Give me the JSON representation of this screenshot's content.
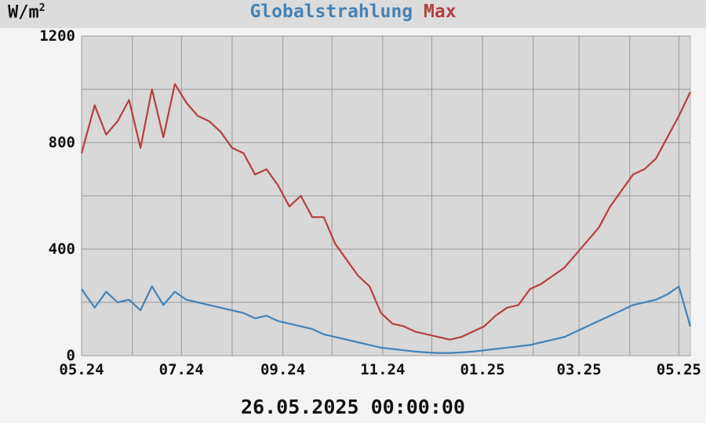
{
  "header": {
    "unit_label": "W/m",
    "unit_exponent": "2",
    "title_part1": "Globalstrahlung",
    "title_part2": "Max"
  },
  "footer": {
    "timestamp": "26.05.2025 00:00:00"
  },
  "colors": {
    "global": "#4682b4",
    "max": "#b44040",
    "plot_bg": "#d8d8d8",
    "grid": "#9a9a9a"
  },
  "chart_data": {
    "type": "line",
    "ylim": [
      0,
      1200
    ],
    "xlim": [
      "2024-05-24",
      "2025-05-31"
    ],
    "grid": true,
    "y_ticks": [
      "0",
      "400",
      "800",
      "1200"
    ],
    "x_ticks": [
      "05.24",
      "07.24",
      "09.24",
      "11.24",
      "01.25",
      "03.25",
      "05.25"
    ],
    "x_tick_dates": [
      "2024-05-24",
      "2024-07-24",
      "2024-09-24",
      "2024-11-24",
      "2025-01-24",
      "2025-03-24",
      "2025-05-24"
    ],
    "series": [
      {
        "name": "Max",
        "color": "#b44040",
        "x": [
          "2024-05-24",
          "2024-06-01",
          "2024-06-08",
          "2024-06-15",
          "2024-06-22",
          "2024-06-29",
          "2024-07-06",
          "2024-07-13",
          "2024-07-20",
          "2024-07-27",
          "2024-08-03",
          "2024-08-10",
          "2024-08-17",
          "2024-08-24",
          "2024-08-31",
          "2024-09-07",
          "2024-09-14",
          "2024-09-21",
          "2024-09-28",
          "2024-10-05",
          "2024-10-12",
          "2024-10-19",
          "2024-10-26",
          "2024-11-02",
          "2024-11-09",
          "2024-11-16",
          "2024-11-23",
          "2024-11-30",
          "2024-12-07",
          "2024-12-14",
          "2024-12-21",
          "2024-12-28",
          "2025-01-04",
          "2025-01-11",
          "2025-01-18",
          "2025-01-25",
          "2025-02-01",
          "2025-02-08",
          "2025-02-15",
          "2025-02-22",
          "2025-03-01",
          "2025-03-08",
          "2025-03-15",
          "2025-03-22",
          "2025-03-29",
          "2025-04-05",
          "2025-04-12",
          "2025-04-19",
          "2025-04-26",
          "2025-05-03",
          "2025-05-10",
          "2025-05-17",
          "2025-05-24",
          "2025-05-31"
        ],
        "values": [
          760,
          940,
          830,
          880,
          960,
          780,
          1000,
          820,
          1020,
          950,
          900,
          880,
          840,
          780,
          760,
          680,
          700,
          640,
          560,
          600,
          520,
          520,
          420,
          360,
          300,
          260,
          160,
          120,
          110,
          90,
          80,
          70,
          60,
          70,
          90,
          110,
          150,
          180,
          190,
          250,
          270,
          300,
          330,
          380,
          430,
          480,
          560,
          620,
          680,
          700,
          740,
          820,
          900,
          990
        ]
      },
      {
        "name": "Globalstrahlung",
        "color": "#4682b4",
        "x": [
          "2024-05-24",
          "2024-06-01",
          "2024-06-08",
          "2024-06-15",
          "2024-06-22",
          "2024-06-29",
          "2024-07-06",
          "2024-07-13",
          "2024-07-20",
          "2024-07-27",
          "2024-08-03",
          "2024-08-10",
          "2024-08-17",
          "2024-08-24",
          "2024-08-31",
          "2024-09-07",
          "2024-09-14",
          "2024-09-21",
          "2024-09-28",
          "2024-10-05",
          "2024-10-12",
          "2024-10-19",
          "2024-10-26",
          "2024-11-02",
          "2024-11-09",
          "2024-11-16",
          "2024-11-23",
          "2024-11-30",
          "2024-12-07",
          "2024-12-14",
          "2024-12-21",
          "2024-12-28",
          "2025-01-04",
          "2025-01-11",
          "2025-01-18",
          "2025-01-25",
          "2025-02-01",
          "2025-02-08",
          "2025-02-15",
          "2025-02-22",
          "2025-03-01",
          "2025-03-08",
          "2025-03-15",
          "2025-03-22",
          "2025-03-29",
          "2025-04-05",
          "2025-04-12",
          "2025-04-19",
          "2025-04-26",
          "2025-05-03",
          "2025-05-10",
          "2025-05-17",
          "2025-05-24",
          "2025-05-31"
        ],
        "values": [
          250,
          180,
          240,
          200,
          210,
          170,
          260,
          190,
          240,
          210,
          200,
          190,
          180,
          170,
          160,
          140,
          150,
          130,
          120,
          110,
          100,
          80,
          70,
          60,
          50,
          40,
          30,
          25,
          20,
          15,
          12,
          10,
          10,
          12,
          15,
          20,
          25,
          30,
          35,
          40,
          50,
          60,
          70,
          90,
          110,
          130,
          150,
          170,
          190,
          200,
          210,
          230,
          260,
          110
        ]
      }
    ]
  }
}
